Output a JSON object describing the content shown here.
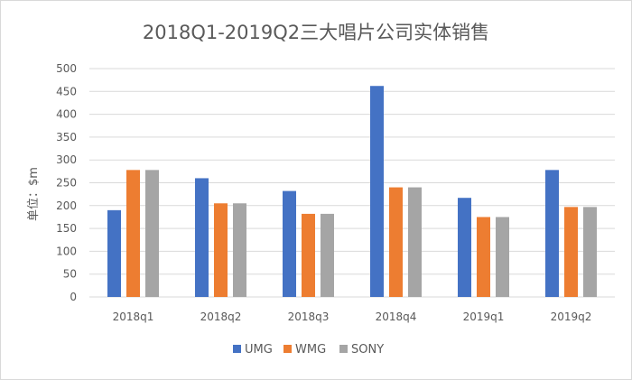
{
  "chart_data": {
    "type": "bar",
    "title": "2018Q1-2019Q2三大唱片公司实体销售",
    "ylabel": "单位：$m",
    "xlabel": "",
    "categories": [
      "2018q1",
      "2018q2",
      "2018q3",
      "2018q4",
      "2019q1",
      "2019q2"
    ],
    "series": [
      {
        "name": "UMG",
        "color": "#4472c4",
        "values": [
          190,
          260,
          232,
          462,
          217,
          278
        ]
      },
      {
        "name": "WMG",
        "color": "#ed7d31",
        "values": [
          278,
          205,
          182,
          240,
          175,
          197
        ]
      },
      {
        "name": "SONY",
        "color": "#a5a5a5",
        "values": [
          278,
          205,
          182,
          240,
          175,
          197
        ]
      }
    ],
    "ylim": [
      0,
      500
    ],
    "yticks": [
      0,
      50,
      100,
      150,
      200,
      250,
      300,
      350,
      400,
      450,
      500
    ],
    "grid": true,
    "legend_position": "bottom"
  }
}
